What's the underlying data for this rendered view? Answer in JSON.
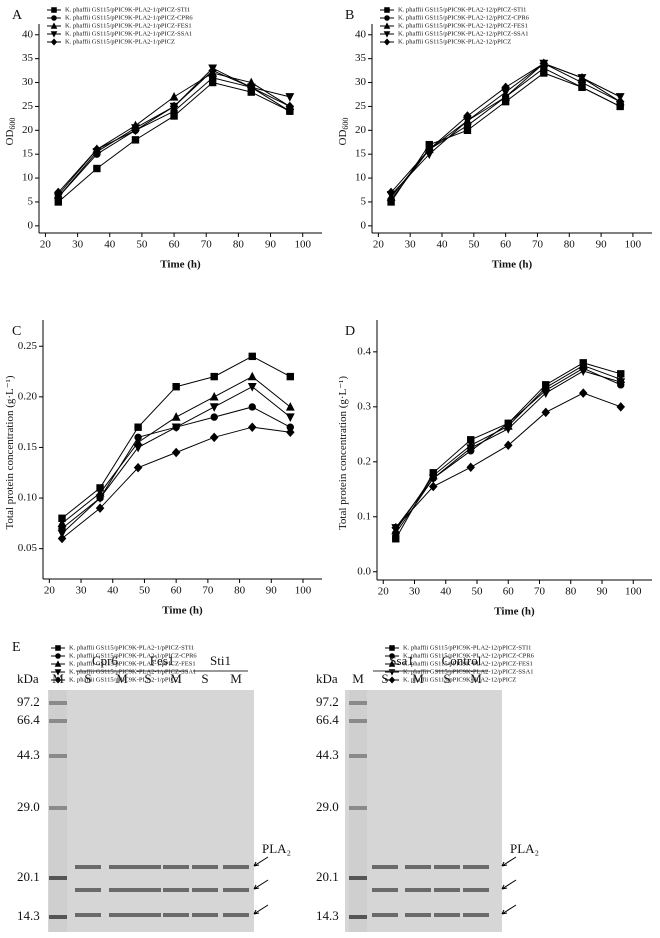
{
  "chart_data": [
    {
      "type": "line",
      "panel_label": "A",
      "x_label": "Time  (h)",
      "y_label": {
        "text": "OD",
        "subscript": "600"
      },
      "x": [
        24,
        36,
        48,
        60,
        72,
        84,
        96
      ],
      "xlim": [
        18,
        106
      ],
      "xticks": [
        20,
        30,
        40,
        50,
        60,
        70,
        80,
        90,
        100
      ],
      "ylim": [
        -1.5,
        41
      ],
      "yticks": [
        0,
        5,
        10,
        15,
        20,
        25,
        30,
        35,
        40
      ],
      "legend": "top-left",
      "series": [
        {
          "name": "K. phaffii GS115/pPIC9K-PLA2-1/pPICZ-STI1",
          "color": "#000000",
          "marker": "square",
          "values": [
            5,
            12,
            18,
            23,
            30,
            28,
            24
          ]
        },
        {
          "name": "K. phaffii GS115/pPIC9K-PLA2-1/pPICZ-CPR6",
          "color": "#000000",
          "marker": "circle",
          "values": [
            6,
            15,
            20,
            24,
            31,
            29,
            24
          ]
        },
        {
          "name": "K. phaffii GS115/pPIC9K-PLA2-1/pPICZ-FES1",
          "color": "#000000",
          "marker": "triangle-up",
          "values": [
            6.5,
            16,
            21,
            27,
            32,
            30,
            25
          ]
        },
        {
          "name": "K. phaffii GS115/pPIC9K-PLA2-1/pPICZ-SSA1",
          "color": "#000000",
          "marker": "triangle-down",
          "values": [
            6,
            15.5,
            20.5,
            25,
            33,
            29,
            27
          ]
        },
        {
          "name": "K. phaffii GS115/pPIC9K-PLA2-1/pPICZ",
          "color": "#000000",
          "marker": "diamond",
          "values": [
            7,
            16,
            20,
            25,
            32.5,
            29,
            25
          ]
        }
      ]
    },
    {
      "type": "line",
      "panel_label": "B",
      "x_label": "Time  (h)",
      "y_label": {
        "text": "OD",
        "subscript": "600"
      },
      "x": [
        24,
        36,
        48,
        60,
        72,
        84,
        96
      ],
      "xlim": [
        18,
        106
      ],
      "xticks": [
        20,
        30,
        40,
        50,
        60,
        70,
        80,
        90,
        100
      ],
      "ylim": [
        -1.5,
        41
      ],
      "yticks": [
        0,
        5,
        10,
        15,
        20,
        25,
        30,
        35,
        40
      ],
      "legend": "top-left",
      "series": [
        {
          "name": "K. phaffii GS115/pPIC9K-PLA2-12/pPICZ-STI1",
          "color": "#000000",
          "marker": "square",
          "values": [
            5,
            17,
            20,
            26,
            32,
            29,
            25
          ]
        },
        {
          "name": "K. phaffii GS115/pPIC9K-PLA2-12/pPICZ-CPR6",
          "color": "#000000",
          "marker": "circle",
          "values": [
            5.5,
            16,
            21,
            27,
            33,
            29,
            25
          ]
        },
        {
          "name": "K. phaffii GS115/pPIC9K-PLA2-12/pPICZ-FES1",
          "color": "#000000",
          "marker": "triangle-up",
          "values": [
            6,
            16,
            22,
            27,
            34,
            31,
            26
          ]
        },
        {
          "name": "K. phaffii GS115/pPIC9K-PLA2-12/pPICZ-SSA1",
          "color": "#000000",
          "marker": "triangle-down",
          "values": [
            6.5,
            15,
            22,
            28,
            34,
            31,
            27
          ]
        },
        {
          "name": "K. phaffii GS115/pPIC9K-PLA2-12/pPICZ",
          "color": "#000000",
          "marker": "diamond",
          "values": [
            7,
            16,
            23,
            29,
            34,
            30,
            26
          ]
        }
      ]
    },
    {
      "type": "line",
      "panel_label": "C",
      "x_label": "Time  (h)",
      "y_label": {
        "text": "Total protein concentration  (g·L⁻¹)"
      },
      "x": [
        24,
        36,
        48,
        60,
        72,
        84,
        96
      ],
      "xlim": [
        18,
        106
      ],
      "xticks": [
        20,
        30,
        40,
        50,
        60,
        70,
        80,
        90,
        100
      ],
      "ylim": [
        0.02,
        0.27
      ],
      "yticks": [
        0.05,
        {
          "value": 0.1,
          "label": "0.10"
        },
        0.15,
        {
          "value": 0.2,
          "label": "0.20"
        },
        0.25
      ],
      "legend": "top-left",
      "series": [
        {
          "name": "K. phaffii GS115/pPIC9K-PLA2-1/pPICZ-STI1",
          "color": "#000000",
          "marker": "square",
          "values": [
            0.08,
            0.11,
            0.17,
            0.21,
            0.22,
            0.24,
            0.22
          ]
        },
        {
          "name": "K. phaffii GS115/pPIC9K-PLA2-1/pPICZ-CPR6",
          "color": "#000000",
          "marker": "circle",
          "values": [
            0.07,
            0.1,
            0.16,
            0.17,
            0.18,
            0.19,
            0.17
          ]
        },
        {
          "name": "K. phaffii GS115/pPIC9K-PLA2-1/pPICZ-FES1",
          "color": "#000000",
          "marker": "triangle-up",
          "values": [
            0.075,
            0.105,
            0.155,
            0.18,
            0.2,
            0.22,
            0.19
          ]
        },
        {
          "name": "K. phaffii GS115/pPIC9K-PLA2-1/pPICZ-SSA1",
          "color": "#000000",
          "marker": "triangle-down",
          "values": [
            0.065,
            0.1,
            0.15,
            0.17,
            0.19,
            0.21,
            0.18
          ]
        },
        {
          "name": "K. phaffii GS115/pPIC9K-PLA2-1/pPICZ",
          "color": "#000000",
          "marker": "diamond",
          "values": [
            0.06,
            0.09,
            0.13,
            0.145,
            0.16,
            0.17,
            0.165
          ]
        }
      ]
    },
    {
      "type": "line",
      "panel_label": "D",
      "x_label": "Time  (h)",
      "y_label": {
        "text": "Total protein concentration  (g·L⁻¹)"
      },
      "x": [
        24,
        36,
        48,
        60,
        72,
        84,
        96
      ],
      "xlim": [
        18,
        106
      ],
      "xticks": [
        20,
        30,
        40,
        50,
        60,
        70,
        80,
        90,
        100
      ],
      "ylim": [
        -0.015,
        0.447
      ],
      "yticks": [
        {
          "value": 0,
          "label": "0.0"
        },
        0.1,
        0.2,
        0.3,
        0.4
      ],
      "legend": "top-left",
      "series": [
        {
          "name": "K. phaffii GS115/pPIC9K-PLA2-12/pPICZ-STI1",
          "color": "#000000",
          "marker": "square",
          "values": [
            0.06,
            0.18,
            0.24,
            0.27,
            0.34,
            0.38,
            0.36
          ]
        },
        {
          "name": "K. phaffii GS115/pPIC9K-PLA2-12/pPICZ-CPR6",
          "color": "#000000",
          "marker": "circle",
          "values": [
            0.07,
            0.17,
            0.22,
            0.27,
            0.33,
            0.37,
            0.34
          ]
        },
        {
          "name": "K. phaffii GS115/pPIC9K-PLA2-12/pPICZ-FES1",
          "color": "#000000",
          "marker": "triangle-up",
          "values": [
            0.075,
            0.175,
            0.23,
            0.265,
            0.335,
            0.375,
            0.35
          ]
        },
        {
          "name": "K. phaffii GS115/pPIC9K-PLA2-12/pPICZ-SSA1",
          "color": "#000000",
          "marker": "triangle-down",
          "values": [
            0.08,
            0.17,
            0.225,
            0.26,
            0.325,
            0.365,
            0.345
          ]
        },
        {
          "name": "K. phaffii GS115/pPIC9K-PLA2-12/pPICZ",
          "color": "#000000",
          "marker": "diamond",
          "values": [
            0.08,
            0.155,
            0.19,
            0.23,
            0.29,
            0.325,
            0.3
          ]
        }
      ]
    }
  ],
  "gel": {
    "panel_label": "E",
    "panels": [
      {
        "unit": "kDa",
        "marker_lane": "M",
        "markers": [
          "97.2",
          "66.4",
          "44.3",
          "29.0",
          "20.1",
          "14.3"
        ],
        "band_label": "PLA₂",
        "groups": [
          {
            "name": "Cpr6",
            "lanes": [
              "S",
              "M"
            ]
          },
          {
            "name": "Fes1",
            "lanes": [
              "S",
              "M"
            ]
          },
          {
            "name": "Sti1",
            "lanes": [
              "S",
              "M"
            ]
          }
        ]
      },
      {
        "unit": "kDa",
        "marker_lane": "M",
        "markers": [
          "97.2",
          "66.4",
          "44.3",
          "29.0",
          "20.1",
          "14.3"
        ],
        "band_label": "PLA₂",
        "groups": [
          {
            "name": "Ssa1",
            "lanes": [
              "S",
              "M"
            ]
          },
          {
            "name": "Control",
            "lanes": [
              "S",
              "M"
            ]
          }
        ]
      }
    ]
  }
}
